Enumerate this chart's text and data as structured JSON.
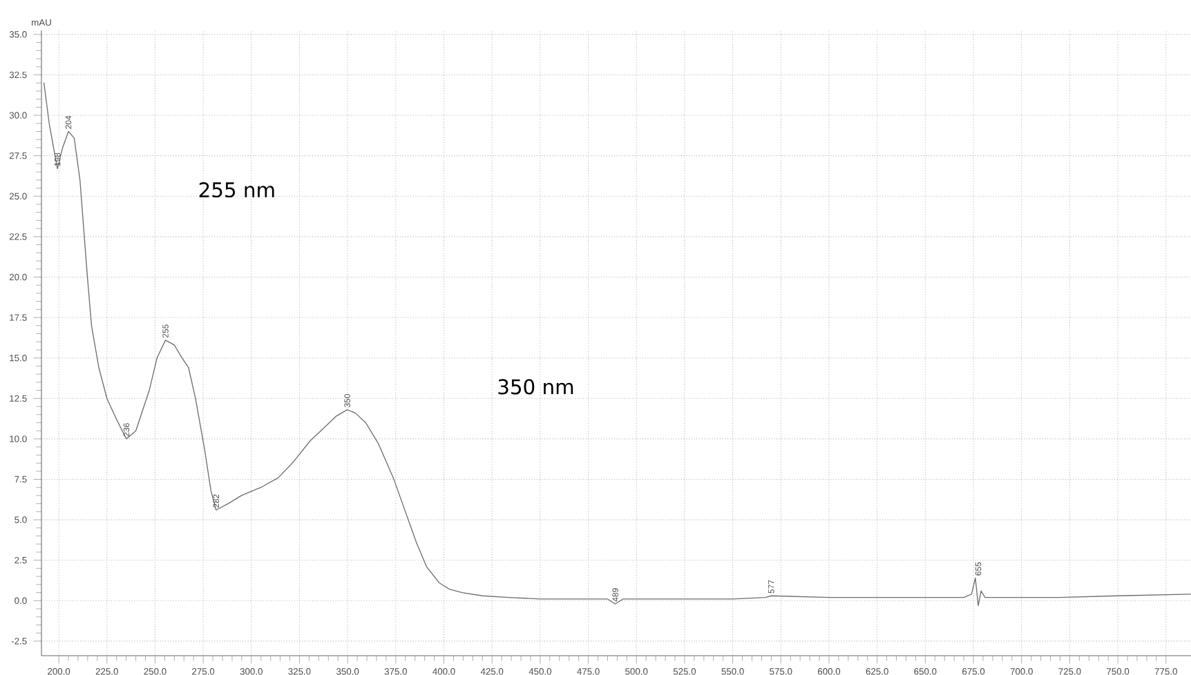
{
  "chart_data": {
    "type": "line",
    "ylabel": "mAU",
    "color": "#6e6e6e",
    "grid": true,
    "x": [
      192.3,
      195,
      199.3,
      202,
      205,
      208,
      211,
      214.8,
      217,
      220.8,
      225,
      230,
      235.1,
      240,
      247,
      251,
      255.4,
      260,
      264,
      267.4,
      271,
      275.8,
      279,
      281.7,
      288,
      294.9,
      305,
      314,
      322,
      330.7,
      337.9,
      344,
      349.8,
      354,
      359.4,
      366,
      373.7,
      380,
      385.7,
      391,
      397.6,
      403,
      409.5,
      420,
      433.5,
      450,
      469.3,
      485,
      489,
      493,
      520,
      550,
      567,
      570,
      600,
      640,
      670,
      674,
      676,
      677.5,
      679,
      681,
      690,
      720,
      750,
      788
    ],
    "values": [
      32.0,
      29.5,
      26.7,
      28.0,
      29.0,
      28.6,
      26.0,
      20.1,
      17.0,
      14.4,
      12.5,
      11.2,
      10.0,
      10.5,
      13.0,
      15.0,
      16.1,
      15.8,
      15.0,
      14.4,
      12.5,
      9.3,
      6.8,
      5.6,
      6.0,
      6.5,
      7.0,
      7.6,
      8.6,
      9.9,
      10.7,
      11.4,
      11.8,
      11.6,
      11.0,
      9.7,
      7.6,
      5.5,
      3.6,
      2.1,
      1.1,
      0.7,
      0.5,
      0.3,
      0.2,
      0.1,
      0.1,
      0.1,
      -0.2,
      0.1,
      0.1,
      0.1,
      0.2,
      0.3,
      0.2,
      0.2,
      0.2,
      0.4,
      1.4,
      -0.3,
      0.6,
      0.2,
      0.2,
      0.2,
      0.3,
      0.4
    ],
    "xlim": [
      191,
      788
    ],
    "ylim": [
      -3.4,
      35.25
    ],
    "xticks": [
      {
        "value": 200,
        "label": "200.0"
      },
      {
        "value": 225,
        "label": "225.0"
      },
      {
        "value": 250,
        "label": "250.0"
      },
      {
        "value": 275,
        "label": "275.0"
      },
      {
        "value": 300,
        "label": "300.0"
      },
      {
        "value": 325,
        "label": "325.0"
      },
      {
        "value": 350,
        "label": "350.0"
      },
      {
        "value": 375,
        "label": "375.0"
      },
      {
        "value": 400,
        "label": "400.0"
      },
      {
        "value": 425,
        "label": "425.0"
      },
      {
        "value": 450,
        "label": "450.0"
      },
      {
        "value": 475,
        "label": "475.0"
      },
      {
        "value": 500,
        "label": "500.0"
      },
      {
        "value": 525,
        "label": "525.0"
      },
      {
        "value": 550,
        "label": "550.0"
      },
      {
        "value": 575,
        "label": "575.0"
      },
      {
        "value": 600,
        "label": "600.0"
      },
      {
        "value": 625,
        "label": "625.0"
      },
      {
        "value": 650,
        "label": "650.0"
      },
      {
        "value": 675,
        "label": "675.0"
      },
      {
        "value": 700,
        "label": "700.0"
      },
      {
        "value": 725,
        "label": "725.0"
      },
      {
        "value": 750,
        "label": "750.0"
      },
      {
        "value": 775,
        "label": "775.0"
      }
    ],
    "yticks": [
      {
        "value": -2.5,
        "label": "-2.5"
      },
      {
        "value": 0,
        "label": "0.0"
      },
      {
        "value": 2.5,
        "label": "2.5"
      },
      {
        "value": 5,
        "label": "5.0"
      },
      {
        "value": 7.5,
        "label": "7.5"
      },
      {
        "value": 10,
        "label": "10.0"
      },
      {
        "value": 12.5,
        "label": "12.5"
      },
      {
        "value": 15,
        "label": "15.0"
      },
      {
        "value": 17.5,
        "label": "17.5"
      },
      {
        "value": 20,
        "label": "20.0"
      },
      {
        "value": 22.5,
        "label": "22.5"
      },
      {
        "value": 25,
        "label": "25.0"
      },
      {
        "value": 27.5,
        "label": "27.5"
      },
      {
        "value": 30,
        "label": "30.0"
      },
      {
        "value": 32.5,
        "label": "32.5"
      },
      {
        "value": 35,
        "label": "35.0"
      }
    ],
    "annotations": [
      {
        "text": "198",
        "x": 199.3,
        "y": 26.7
      },
      {
        "text": "204",
        "x": 205,
        "y": 29.0
      },
      {
        "text": "236",
        "x": 235.1,
        "y": 10.0
      },
      {
        "text": "255",
        "x": 255.4,
        "y": 16.1
      },
      {
        "text": "282",
        "x": 281.7,
        "y": 5.6
      },
      {
        "text": "350",
        "x": 349.8,
        "y": 11.8
      },
      {
        "text": "489",
        "x": 489,
        "y": -0.2
      },
      {
        "text": "577",
        "x": 570,
        "y": 0.3
      },
      {
        "text": "655",
        "x": 677.5,
        "y": 1.4
      },
      "255 nm",
      "350 nm"
    ]
  }
}
